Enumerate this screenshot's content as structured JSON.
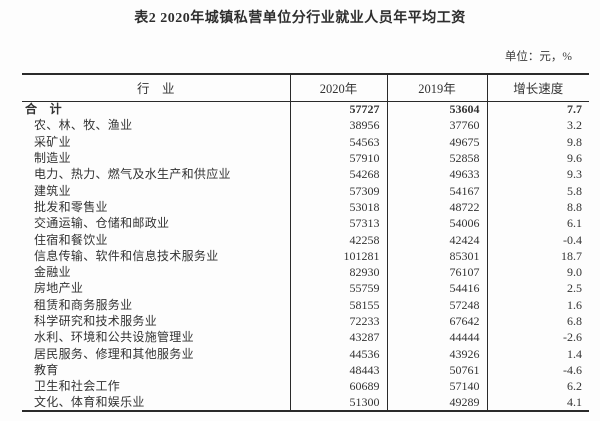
{
  "page": {
    "title": "表2 2020年城镇私营单位分行业就业人员年平均工资",
    "unit_note": "单位：元，%"
  },
  "colors": {
    "background": "#fdfdfd",
    "text": "#333333",
    "border": "#2a2a2a"
  },
  "table": {
    "columns": {
      "industry": "行　业",
      "y2020": "2020年",
      "y2019": "2019年",
      "growth": "增长速度"
    },
    "total": {
      "industry": "合　计",
      "y2020": "57727",
      "y2019": "53604",
      "growth": "7.7"
    },
    "rows": [
      {
        "industry": "农、林、牧、渔业",
        "y2020": "38956",
        "y2019": "37760",
        "growth": "3.2"
      },
      {
        "industry": "采矿业",
        "y2020": "54563",
        "y2019": "49675",
        "growth": "9.8"
      },
      {
        "industry": "制造业",
        "y2020": "57910",
        "y2019": "52858",
        "growth": "9.6"
      },
      {
        "industry": "电力、热力、燃气及水生产和供应业",
        "y2020": "54268",
        "y2019": "49633",
        "growth": "9.3"
      },
      {
        "industry": "建筑业",
        "y2020": "57309",
        "y2019": "54167",
        "growth": "5.8"
      },
      {
        "industry": "批发和零售业",
        "y2020": "53018",
        "y2019": "48722",
        "growth": "8.8"
      },
      {
        "industry": "交通运输、仓储和邮政业",
        "y2020": "57313",
        "y2019": "54006",
        "growth": "6.1"
      },
      {
        "industry": "住宿和餐饮业",
        "y2020": "42258",
        "y2019": "42424",
        "growth": "-0.4"
      },
      {
        "industry": "信息传输、软件和信息技术服务业",
        "y2020": "101281",
        "y2019": "85301",
        "growth": "18.7"
      },
      {
        "industry": "金融业",
        "y2020": "82930",
        "y2019": "76107",
        "growth": "9.0"
      },
      {
        "industry": "房地产业",
        "y2020": "55759",
        "y2019": "54416",
        "growth": "2.5"
      },
      {
        "industry": "租赁和商务服务业",
        "y2020": "58155",
        "y2019": "57248",
        "growth": "1.6"
      },
      {
        "industry": "科学研究和技术服务业",
        "y2020": "72233",
        "y2019": "67642",
        "growth": "6.8"
      },
      {
        "industry": "水利、环境和公共设施管理业",
        "y2020": "43287",
        "y2019": "44444",
        "growth": "-2.6"
      },
      {
        "industry": "居民服务、修理和其他服务业",
        "y2020": "44536",
        "y2019": "43926",
        "growth": "1.4"
      },
      {
        "industry": "教育",
        "y2020": "48443",
        "y2019": "50761",
        "growth": "-4.6"
      },
      {
        "industry": "卫生和社会工作",
        "y2020": "60689",
        "y2019": "57140",
        "growth": "6.2"
      },
      {
        "industry": "文化、体育和娱乐业",
        "y2020": "51300",
        "y2019": "49289",
        "growth": "4.1"
      }
    ]
  }
}
